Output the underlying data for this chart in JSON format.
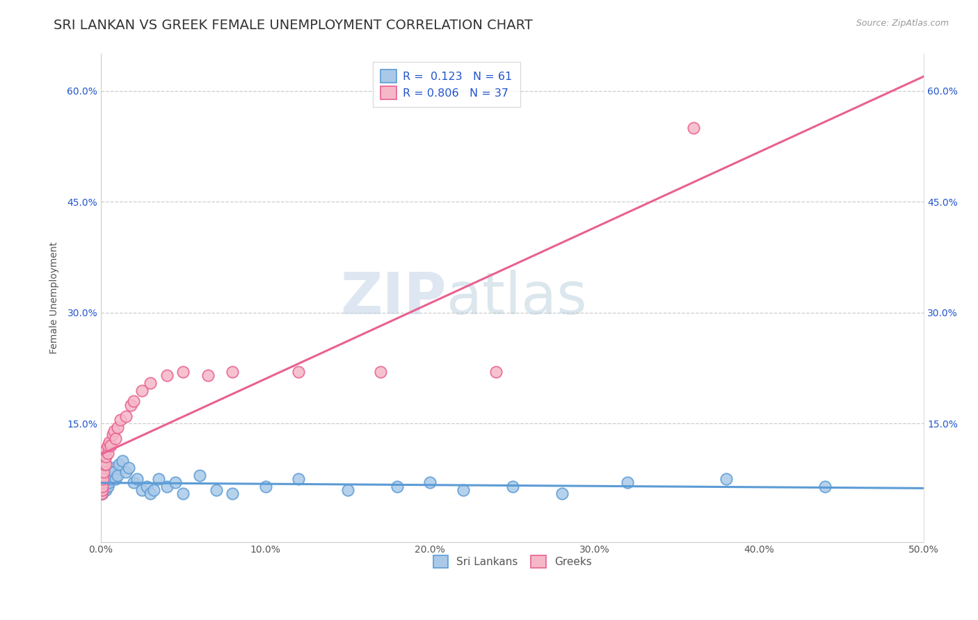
{
  "title": "SRI LANKAN VS GREEK FEMALE UNEMPLOYMENT CORRELATION CHART",
  "source": "Source: ZipAtlas.com",
  "xlabel_ticks": [
    "0.0%",
    "10.0%",
    "20.0%",
    "30.0%",
    "40.0%",
    "50.0%"
  ],
  "ylabel_ticks_left": [
    "15.0%",
    "30.0%",
    "45.0%",
    "60.0%"
  ],
  "ylabel_ticks_right": [
    "15.0%",
    "30.0%",
    "45.0%",
    "60.0%"
  ],
  "xlim": [
    0,
    0.5
  ],
  "ylim": [
    -0.01,
    0.65
  ],
  "yticks": [
    0.15,
    0.3,
    0.45,
    0.6
  ],
  "xticks": [
    0.0,
    0.1,
    0.2,
    0.3,
    0.4,
    0.5
  ],
  "watermark_zip": "ZIP",
  "watermark_atlas": "atlas",
  "sri_lankan_fill": "#aac9e8",
  "sri_lankan_edge": "#5b9bd5",
  "greek_fill": "#f5b8c8",
  "greek_edge": "#e96090",
  "sri_lankan_line_color": "#5b9bd5",
  "greek_line_color": "#e96090",
  "legend_R_color": "#2255cc",
  "sri_lankan_scatter_x": [
    0.0002,
    0.0003,
    0.0004,
    0.0005,
    0.0006,
    0.0007,
    0.0008,
    0.0009,
    0.001,
    0.001,
    0.0012,
    0.0013,
    0.0014,
    0.0015,
    0.0016,
    0.0017,
    0.002,
    0.002,
    0.002,
    0.0025,
    0.003,
    0.003,
    0.003,
    0.003,
    0.004,
    0.004,
    0.005,
    0.005,
    0.006,
    0.007,
    0.008,
    0.009,
    0.01,
    0.011,
    0.013,
    0.015,
    0.017,
    0.02,
    0.022,
    0.025,
    0.028,
    0.03,
    0.032,
    0.035,
    0.04,
    0.045,
    0.05,
    0.06,
    0.07,
    0.08,
    0.1,
    0.12,
    0.15,
    0.18,
    0.2,
    0.22,
    0.25,
    0.28,
    0.32,
    0.38,
    0.44
  ],
  "sri_lankan_scatter_y": [
    0.055,
    0.06,
    0.065,
    0.055,
    0.07,
    0.06,
    0.065,
    0.07,
    0.055,
    0.075,
    0.06,
    0.065,
    0.06,
    0.07,
    0.075,
    0.06,
    0.06,
    0.065,
    0.075,
    0.07,
    0.06,
    0.065,
    0.075,
    0.08,
    0.065,
    0.08,
    0.07,
    0.085,
    0.075,
    0.09,
    0.085,
    0.075,
    0.08,
    0.095,
    0.1,
    0.085,
    0.09,
    0.07,
    0.075,
    0.06,
    0.065,
    0.055,
    0.06,
    0.075,
    0.065,
    0.07,
    0.055,
    0.08,
    0.06,
    0.055,
    0.065,
    0.075,
    0.06,
    0.065,
    0.07,
    0.06,
    0.065,
    0.055,
    0.07,
    0.075,
    0.065
  ],
  "greek_scatter_x": [
    0.0002,
    0.0003,
    0.0004,
    0.0005,
    0.0006,
    0.0007,
    0.0008,
    0.001,
    0.0012,
    0.0015,
    0.002,
    0.002,
    0.003,
    0.003,
    0.003,
    0.004,
    0.004,
    0.005,
    0.006,
    0.007,
    0.008,
    0.009,
    0.01,
    0.012,
    0.015,
    0.018,
    0.02,
    0.025,
    0.03,
    0.04,
    0.05,
    0.065,
    0.08,
    0.12,
    0.17,
    0.24,
    0.36
  ],
  "greek_scatter_y": [
    0.055,
    0.06,
    0.065,
    0.055,
    0.06,
    0.07,
    0.065,
    0.08,
    0.075,
    0.085,
    0.095,
    0.1,
    0.095,
    0.105,
    0.115,
    0.11,
    0.12,
    0.125,
    0.12,
    0.135,
    0.14,
    0.13,
    0.145,
    0.155,
    0.16,
    0.175,
    0.18,
    0.195,
    0.205,
    0.215,
    0.22,
    0.215,
    0.22,
    0.22,
    0.22,
    0.22,
    0.55
  ],
  "sri_lankan_R": "0.123",
  "sri_lankan_N": "61",
  "greek_R": "0.806",
  "greek_N": "37",
  "legend_label_1": "Sri Lankans",
  "legend_label_2": "Greeks",
  "title_fontsize": 14,
  "source_fontsize": 9,
  "axis_label_fontsize": 10,
  "tick_fontsize": 10,
  "background_color": "#ffffff",
  "grid_color": "#cccccc",
  "ylabel": "Female Unemployment"
}
